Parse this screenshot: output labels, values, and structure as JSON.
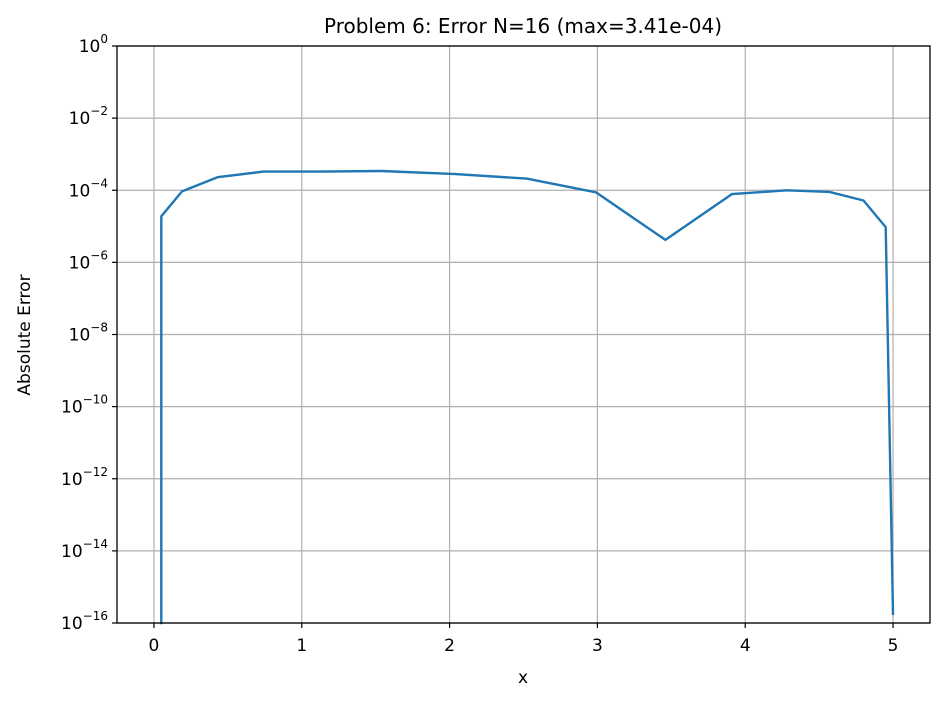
{
  "chart_data": {
    "type": "line",
    "title": "Problem 6: Error N=16 (max=3.41e-04)",
    "xlabel": "x",
    "ylabel": "Absolute Error",
    "xlim": [
      -0.25,
      5.25
    ],
    "ylim": [
      1e-16,
      1
    ],
    "yscale": "log",
    "grid": true,
    "xticks": [
      0,
      1,
      2,
      3,
      4,
      5
    ],
    "xtick_labels": [
      "0",
      "1",
      "2",
      "3",
      "4",
      "5"
    ],
    "yticks": [
      {
        "base": "10",
        "exp": "0",
        "value": 1.0
      },
      {
        "base": "10",
        "exp": "−2",
        "value": 0.01
      },
      {
        "base": "10",
        "exp": "−4",
        "value": 0.0001
      },
      {
        "base": "10",
        "exp": "−6",
        "value": 1e-06
      },
      {
        "base": "10",
        "exp": "−8",
        "value": 1e-08
      },
      {
        "base": "10",
        "exp": "−10",
        "value": 1e-10
      },
      {
        "base": "10",
        "exp": "−12",
        "value": 1e-12
      },
      {
        "base": "10",
        "exp": "−14",
        "value": 1e-14
      },
      {
        "base": "10",
        "exp": "−16",
        "value": 1e-16
      }
    ],
    "series": [
      {
        "color": "#1f77b4",
        "x": [
          0.05,
          0.05,
          0.19,
          0.43,
          0.74,
          1.13,
          1.54,
          2.04,
          2.52,
          2.99,
          3.46,
          3.91,
          4.28,
          4.57,
          4.8,
          4.95,
          5.0
        ],
        "y": [
          1e-16,
          1.9e-05,
          9.3e-05,
          0.00023,
          0.00033,
          0.00033,
          0.000341,
          0.00028,
          0.00021,
          8.8e-05,
          4.2e-06,
          7.8e-05,
          0.0001,
          9e-05,
          5.2e-05,
          9.5e-06,
          1.8e-16
        ]
      }
    ]
  }
}
